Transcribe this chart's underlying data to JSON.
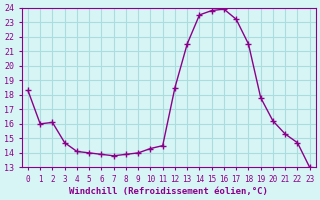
{
  "x": [
    0,
    1,
    2,
    3,
    4,
    5,
    6,
    7,
    8,
    9,
    10,
    11,
    12,
    13,
    14,
    15,
    16,
    17,
    18,
    19,
    20,
    21,
    22,
    23
  ],
  "y": [
    18.3,
    16.0,
    16.1,
    14.7,
    14.1,
    14.0,
    13.9,
    13.8,
    13.9,
    14.0,
    14.3,
    14.5,
    18.5,
    21.5,
    23.5,
    23.8,
    23.9,
    23.2,
    21.5,
    17.8,
    16.2,
    15.3,
    14.7,
    13.0
  ],
  "line_color": "#8B008B",
  "marker": "+",
  "bg_color": "#d8f5f5",
  "grid_color": "#aadddd",
  "xlabel": "Windchill (Refroidissement éolien,°C)",
  "xlabel_color": "#8B008B",
  "title": "",
  "xlim": [
    -0.5,
    23.5
  ],
  "ylim": [
    13,
    24
  ],
  "yticks": [
    13,
    14,
    15,
    16,
    17,
    18,
    19,
    20,
    21,
    22,
    23,
    24
  ],
  "xticks": [
    0,
    1,
    2,
    3,
    4,
    5,
    6,
    7,
    8,
    9,
    10,
    11,
    12,
    13,
    14,
    15,
    16,
    17,
    18,
    19,
    20,
    21,
    22,
    23
  ],
  "tick_color": "#8B008B",
  "axis_color": "#8B008B"
}
